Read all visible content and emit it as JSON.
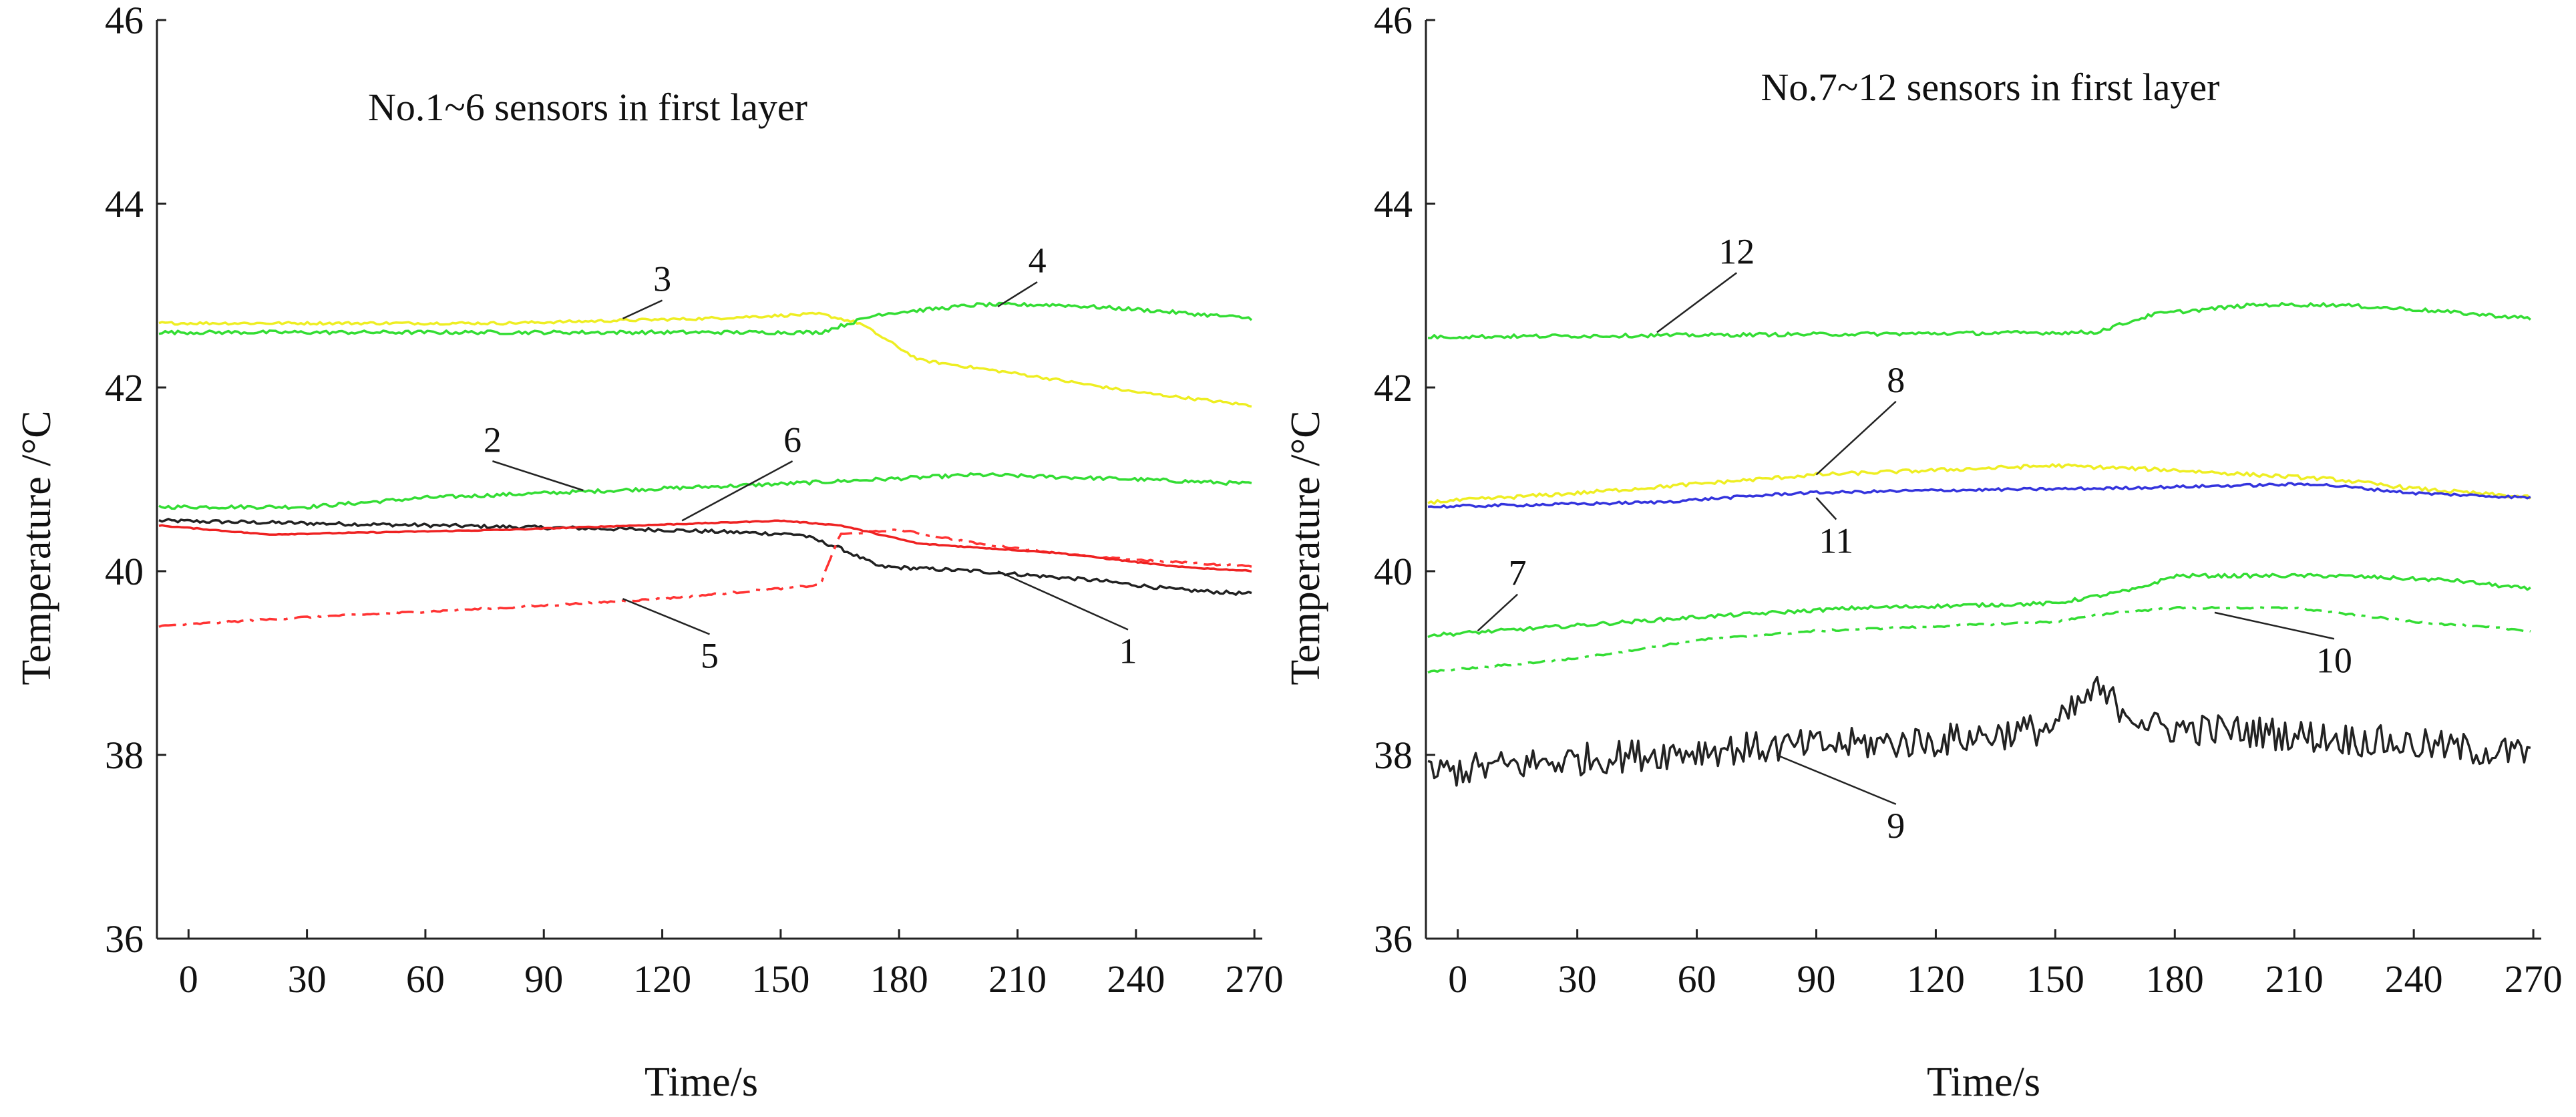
{
  "chart_data": [
    {
      "type": "line",
      "title": "No.1~6 sensors in first layer",
      "xlabel": "Time/s",
      "ylabel": "Temperature /°C",
      "xlim": [
        -8,
        272
      ],
      "ylim": [
        36,
        46
      ],
      "x_ticks": [
        0,
        30,
        60,
        90,
        120,
        150,
        180,
        210,
        240,
        270
      ],
      "y_ticks": [
        36,
        38,
        40,
        42,
        44,
        46
      ],
      "grid": false,
      "series": [
        {
          "name": "1",
          "color": "#222222",
          "dash": "solid",
          "noise": 0.02,
          "points": [
            [
              -8,
              40.55
            ],
            [
              60,
              40.5
            ],
            [
              120,
              40.45
            ],
            [
              155,
              40.4
            ],
            [
              165,
              40.25
            ],
            [
              175,
              40.05
            ],
            [
              200,
              40.0
            ],
            [
              230,
              39.9
            ],
            [
              250,
              39.8
            ],
            [
              270,
              39.75
            ]
          ]
        },
        {
          "name": "2",
          "color": "#33dd33",
          "dash": "solid",
          "noise": 0.02,
          "points": [
            [
              -8,
              40.7
            ],
            [
              30,
              40.7
            ],
            [
              60,
              40.8
            ],
            [
              90,
              40.85
            ],
            [
              150,
              40.95
            ],
            [
              200,
              41.05
            ],
            [
              240,
              41.0
            ],
            [
              270,
              40.95
            ]
          ]
        },
        {
          "name": "3",
          "color": "#eeee22",
          "dash": "solid",
          "noise": 0.015,
          "points": [
            [
              -8,
              42.7
            ],
            [
              80,
              42.7
            ],
            [
              130,
              42.75
            ],
            [
              160,
              42.8
            ],
            [
              170,
              42.7
            ],
            [
              185,
              42.3
            ],
            [
              210,
              42.15
            ],
            [
              240,
              41.95
            ],
            [
              270,
              41.8
            ]
          ]
        },
        {
          "name": "4",
          "color": "#33dd33",
          "dash": "solid",
          "noise": 0.02,
          "points": [
            [
              -8,
              42.6
            ],
            [
              160,
              42.6
            ],
            [
              175,
              42.8
            ],
            [
              200,
              42.9
            ],
            [
              220,
              42.9
            ],
            [
              240,
              42.85
            ],
            [
              270,
              42.75
            ]
          ]
        },
        {
          "name": "5",
          "color": "#ff3333",
          "dash": "dashdot",
          "noise": 0.01,
          "points": [
            [
              -8,
              39.4
            ],
            [
              30,
              39.5
            ],
            [
              80,
              39.6
            ],
            [
              120,
              39.7
            ],
            [
              160,
              39.85
            ],
            [
              165,
              40.4
            ],
            [
              180,
              40.45
            ],
            [
              200,
              40.3
            ],
            [
              230,
              40.15
            ],
            [
              270,
              40.05
            ]
          ]
        },
        {
          "name": "6",
          "color": "#ee2222",
          "dash": "solid",
          "noise": 0.005,
          "points": [
            [
              -8,
              40.5
            ],
            [
              20,
              40.4
            ],
            [
              80,
              40.45
            ],
            [
              150,
              40.55
            ],
            [
              165,
              40.5
            ],
            [
              185,
              40.3
            ],
            [
              220,
              40.2
            ],
            [
              250,
              40.05
            ],
            [
              270,
              40.0
            ]
          ]
        }
      ],
      "annotations": [
        {
          "label": "1",
          "target": [
            205,
            40.0
          ],
          "text_at": [
            238,
            39.0
          ]
        },
        {
          "label": "2",
          "target": [
            100,
            40.88
          ],
          "text_at": [
            77,
            41.3
          ]
        },
        {
          "label": "3",
          "target": [
            110,
            42.75
          ],
          "text_at": [
            120,
            43.05
          ]
        },
        {
          "label": "4",
          "target": [
            205,
            42.88
          ],
          "text_at": [
            215,
            43.25
          ]
        },
        {
          "label": "5",
          "target": [
            110,
            39.7
          ],
          "text_at": [
            132,
            38.95
          ]
        },
        {
          "label": "6",
          "target": [
            125,
            40.55
          ],
          "text_at": [
            153,
            41.3
          ]
        }
      ]
    },
    {
      "type": "line",
      "title": "No.7~12 sensors in first layer",
      "xlabel": "Time/s",
      "ylabel": "Temperature /°C",
      "xlim": [
        -8,
        272
      ],
      "ylim": [
        36,
        46
      ],
      "x_ticks": [
        0,
        30,
        60,
        90,
        120,
        150,
        180,
        210,
        240,
        270
      ],
      "y_ticks": [
        36,
        38,
        40,
        42,
        44,
        46
      ],
      "grid": false,
      "series": [
        {
          "name": "7",
          "color": "#33dd33",
          "dash": "solid",
          "noise": 0.02,
          "points": [
            [
              -8,
              39.3
            ],
            [
              10,
              39.35
            ],
            [
              60,
              39.5
            ],
            [
              100,
              39.6
            ],
            [
              150,
              39.65
            ],
            [
              170,
              39.8
            ],
            [
              180,
              39.95
            ],
            [
              220,
              39.95
            ],
            [
              250,
              39.9
            ],
            [
              270,
              39.8
            ]
          ]
        },
        {
          "name": "8",
          "color": "#eeee22",
          "dash": "solid",
          "noise": 0.02,
          "points": [
            [
              -8,
              40.75
            ],
            [
              30,
              40.85
            ],
            [
              60,
              40.95
            ],
            [
              90,
              41.05
            ],
            [
              150,
              41.15
            ],
            [
              180,
              41.1
            ],
            [
              220,
              41.0
            ],
            [
              240,
              40.9
            ],
            [
              270,
              40.8
            ]
          ]
        },
        {
          "name": "9",
          "color": "#222222",
          "dash": "solid",
          "noise": 0.18,
          "points": [
            [
              -8,
              37.8
            ],
            [
              30,
              37.95
            ],
            [
              60,
              38.05
            ],
            [
              90,
              38.1
            ],
            [
              120,
              38.15
            ],
            [
              150,
              38.3
            ],
            [
              160,
              38.7
            ],
            [
              175,
              38.3
            ],
            [
              200,
              38.25
            ],
            [
              230,
              38.15
            ],
            [
              270,
              38.0
            ]
          ]
        },
        {
          "name": "10",
          "color": "#33dd33",
          "dash": "dashdot",
          "noise": 0.01,
          "points": [
            [
              -8,
              38.9
            ],
            [
              30,
              39.05
            ],
            [
              60,
              39.25
            ],
            [
              90,
              39.35
            ],
            [
              150,
              39.45
            ],
            [
              165,
              39.55
            ],
            [
              180,
              39.6
            ],
            [
              210,
              39.6
            ],
            [
              240,
              39.45
            ],
            [
              270,
              39.35
            ]
          ]
        },
        {
          "name": "11",
          "color": "#3333dd",
          "dash": "solid",
          "noise": 0.015,
          "points": [
            [
              -8,
              40.7
            ],
            [
              50,
              40.75
            ],
            [
              85,
              40.85
            ],
            [
              120,
              40.88
            ],
            [
              160,
              40.9
            ],
            [
              215,
              40.95
            ],
            [
              240,
              40.85
            ],
            [
              270,
              40.8
            ]
          ]
        },
        {
          "name": "12",
          "color": "#33dd33",
          "dash": "solid",
          "noise": 0.02,
          "points": [
            [
              -8,
              42.55
            ],
            [
              160,
              42.6
            ],
            [
              175,
              42.8
            ],
            [
              200,
              42.9
            ],
            [
              220,
              42.9
            ],
            [
              240,
              42.85
            ],
            [
              270,
              42.75
            ]
          ]
        }
      ],
      "annotations": [
        {
          "label": "7",
          "target": [
            5,
            39.35
          ],
          "text_at": [
            15,
            39.85
          ]
        },
        {
          "label": "8",
          "target": [
            90,
            41.05
          ],
          "text_at": [
            110,
            41.95
          ]
        },
        {
          "label": "9",
          "target": [
            80,
            38.0
          ],
          "text_at": [
            110,
            37.1
          ]
        },
        {
          "label": "10",
          "target": [
            190,
            39.55
          ],
          "text_at": [
            220,
            38.9
          ]
        },
        {
          "label": "11",
          "target": [
            90,
            40.8
          ],
          "text_at": [
            95,
            40.2
          ]
        },
        {
          "label": "12",
          "target": [
            50,
            42.6
          ],
          "text_at": [
            70,
            43.35
          ]
        }
      ]
    }
  ]
}
